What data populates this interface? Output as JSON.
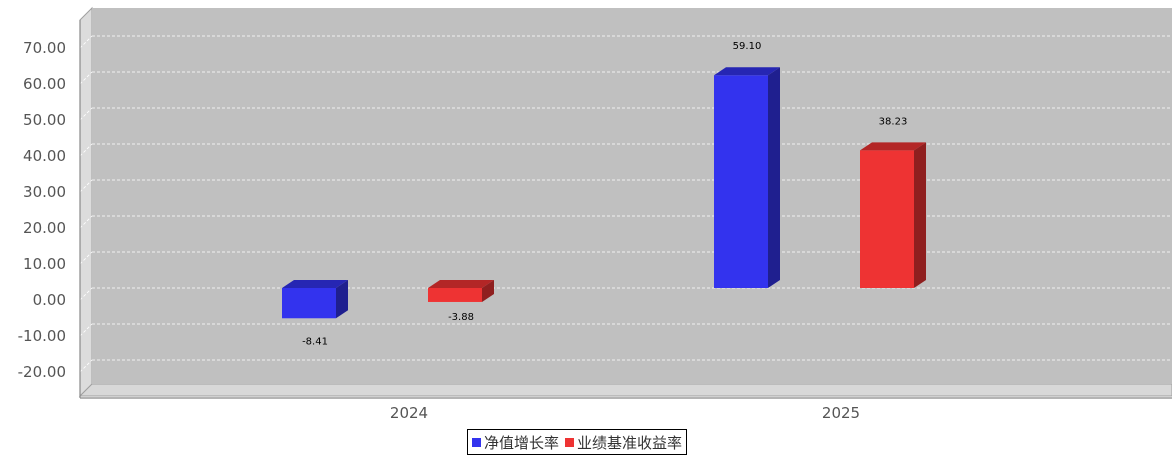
{
  "chart_data": {
    "type": "bar",
    "categories": [
      "2024",
      "2025"
    ],
    "series": [
      {
        "name": "净值增长率",
        "values": [
          -8.41,
          59.1
        ],
        "labels": [
          "-8.41",
          "59.10"
        ],
        "color": "#3333ee"
      },
      {
        "name": "业绩基准收益率",
        "values": [
          -3.88,
          38.23
        ],
        "labels": [
          "-3.88",
          "38.23"
        ],
        "color": "#ee3333"
      }
    ],
    "yticks": [
      "70.00",
      "60.00",
      "50.00",
      "40.00",
      "30.00",
      "20.00",
      "10.00",
      "0.00",
      "-10.00",
      "-20.00"
    ],
    "ylim": [
      -30,
      72
    ],
    "title": "",
    "xlabel": "",
    "ylabel": "",
    "grid": true,
    "legend_position": "bottom-center",
    "plot_background": "#c0c0c0",
    "three_d": true
  }
}
